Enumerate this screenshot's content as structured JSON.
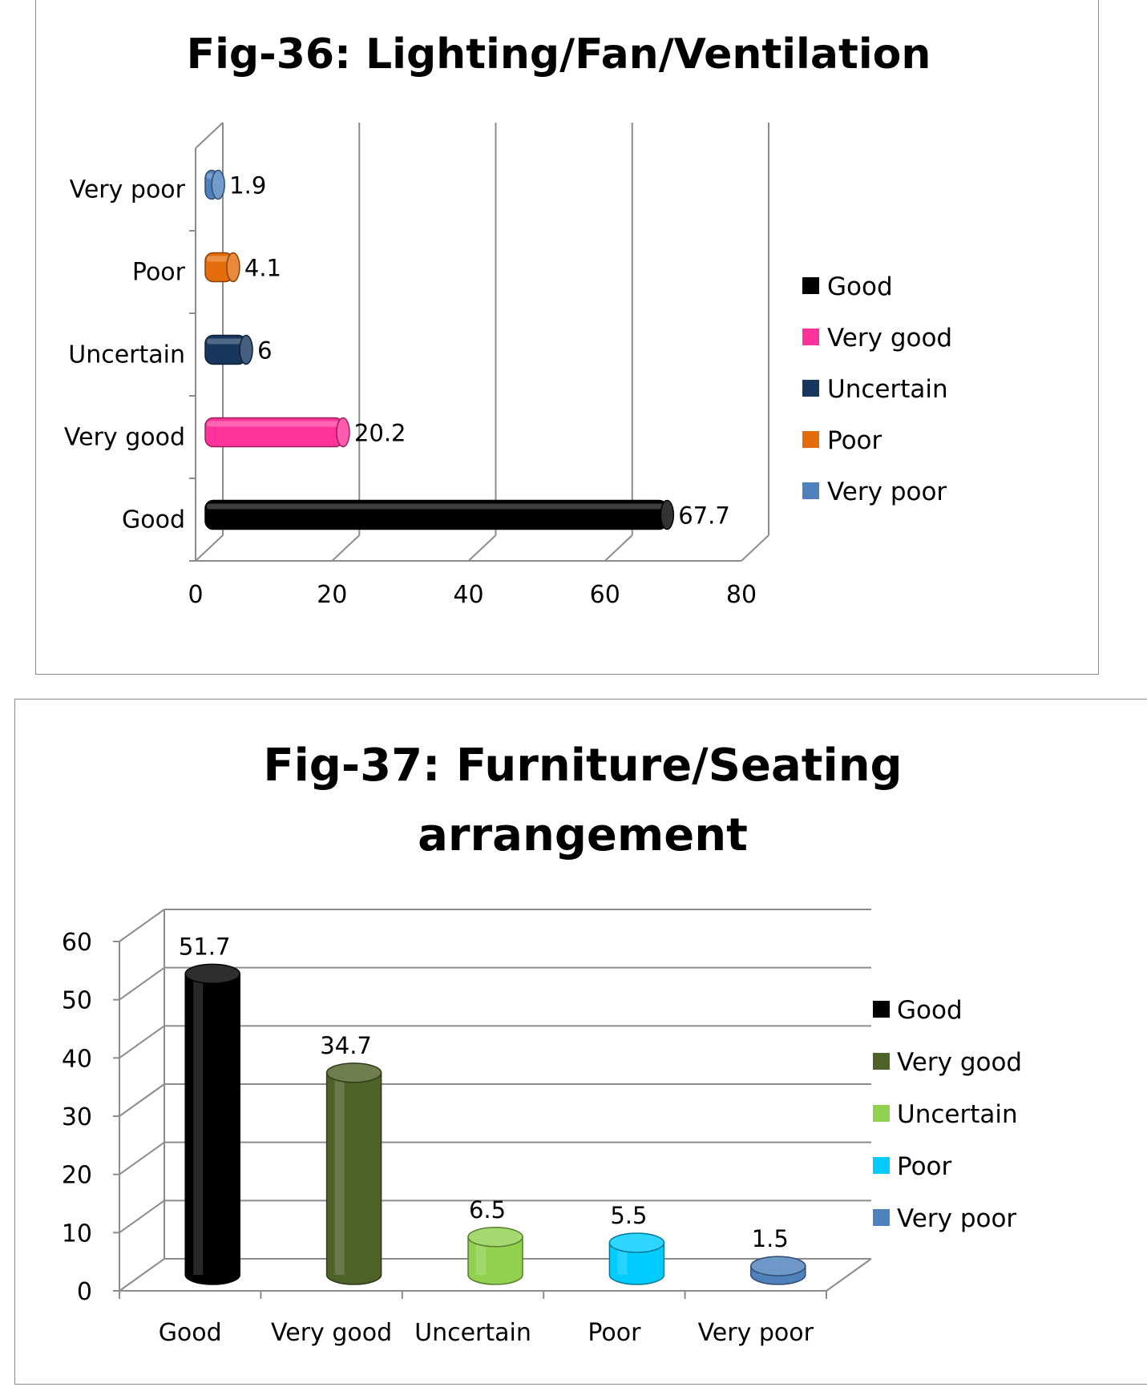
{
  "charts": [
    {
      "id": "fig36",
      "type": "bar",
      "orientation": "horizontal",
      "title": "Fig-36: Lighting/Fan/Ventilation",
      "categories": [
        "Good",
        "Very good",
        "Uncertain",
        "Poor",
        "Very poor"
      ],
      "values": [
        67.7,
        20.2,
        6,
        4.1,
        1.9
      ],
      "value_labels": [
        "67.7",
        "20.2",
        "6",
        "4.1",
        "1.9"
      ],
      "colors": [
        "#000000",
        "#ff3399",
        "#17375e",
        "#e46c0a",
        "#4f81bd"
      ],
      "xlim": [
        0,
        80
      ],
      "xticks": [
        "0",
        "20",
        "40",
        "60",
        "80"
      ],
      "grid": true,
      "legend": {
        "position": "right",
        "entries": [
          "Good",
          "Very good",
          "Uncertain",
          "Poor",
          "Very poor"
        ]
      }
    },
    {
      "id": "fig37",
      "type": "bar",
      "orientation": "vertical",
      "title_lines": [
        "Fig-37: Furniture/Seating",
        "arrangement"
      ],
      "categories": [
        "Good",
        "Very good",
        "Uncertain",
        "Poor",
        "Very poor"
      ],
      "values": [
        51.7,
        34.7,
        6.5,
        5.5,
        1.5
      ],
      "value_labels": [
        "51.7",
        "34.7",
        "6.5",
        "5.5",
        "1.5"
      ],
      "colors": [
        "#000000",
        "#4f6228",
        "#92d050",
        "#00ccff",
        "#4f81bd"
      ],
      "ylim": [
        0,
        60
      ],
      "yticks": [
        "0",
        "10",
        "20",
        "30",
        "40",
        "50",
        "60"
      ],
      "grid": true,
      "legend": {
        "position": "right",
        "entries": [
          "Good",
          "Very good",
          "Uncertain",
          "Poor",
          "Very poor"
        ]
      }
    }
  ]
}
